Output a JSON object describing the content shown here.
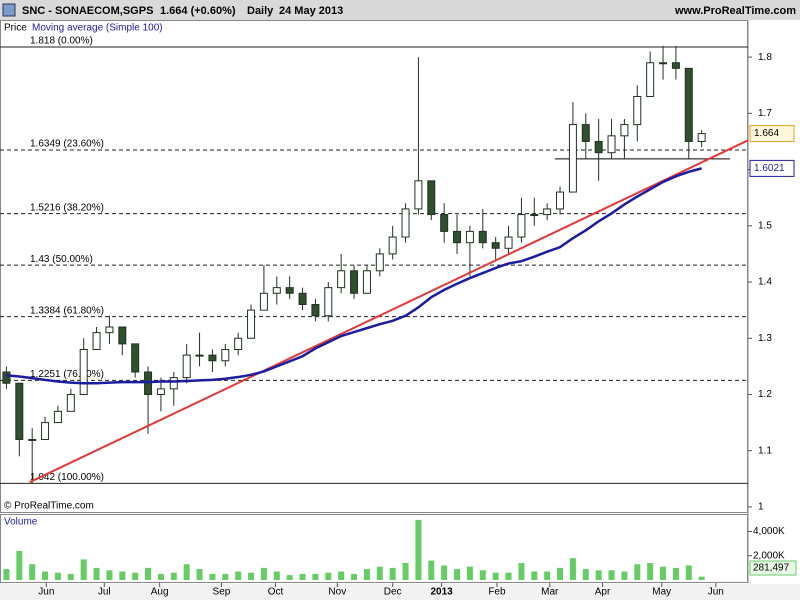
{
  "chart_data": {
    "type": "candlestick",
    "title": "SNC - SONAECOM,SGPS",
    "quote": "1.664 (+0.60%)",
    "period": "Daily",
    "date": "24 May 2013",
    "source": "www.ProRealTime.com",
    "copyright": "© ProRealTime.com",
    "xlim": [
      0,
      58.1
    ],
    "xticks": [
      {
        "value": 3.6,
        "label": "Jun"
      },
      {
        "value": 8.1,
        "label": "Jul"
      },
      {
        "value": 12.4,
        "label": "Aug"
      },
      {
        "value": 17.2,
        "label": "Sep"
      },
      {
        "value": 21.4,
        "label": "Oct"
      },
      {
        "value": 26.2,
        "label": "Nov"
      },
      {
        "value": 30.5,
        "label": "Dec"
      },
      {
        "value": 34.3,
        "label": "2013"
      },
      {
        "value": 38.6,
        "label": "Feb"
      },
      {
        "value": 42.7,
        "label": "Mar"
      },
      {
        "value": 46.8,
        "label": "Apr"
      },
      {
        "value": 51.4,
        "label": "May"
      },
      {
        "value": 55.6,
        "label": "Jun"
      }
    ],
    "ylim": [
      0.991,
      1.866
    ],
    "yticks": [
      1,
      1.1,
      1.2,
      1.3,
      1.4,
      1.5,
      1.6,
      1.7,
      1.8
    ],
    "x": [
      0.5,
      1.5,
      2.5,
      3.5,
      4.5,
      5.5,
      6.5,
      7.5,
      8.5,
      9.5,
      10.5,
      11.5,
      12.5,
      13.5,
      14.5,
      15.5,
      16.5,
      17.5,
      18.5,
      19.5,
      20.5,
      21.5,
      22.5,
      23.5,
      24.5,
      25.5,
      26.5,
      27.5,
      28.5,
      29.5,
      30.5,
      31.5,
      32.5,
      33.5,
      34.5,
      35.5,
      36.5,
      37.5,
      38.5,
      39.5,
      40.5,
      41.5,
      42.5,
      43.5,
      44.5,
      45.5,
      46.5,
      47.5,
      48.5,
      49.5,
      50.5,
      51.5,
      52.5,
      53.5,
      54.5
    ],
    "series": [
      {
        "name": "Price",
        "up_color": "#ffffff",
        "down_color": "#2f4f2f",
        "color": "#1f331f",
        "open": [
          1.24,
          1.22,
          1.12,
          1.12,
          1.15,
          1.17,
          1.2,
          1.28,
          1.31,
          1.32,
          1.29,
          1.24,
          1.2,
          1.21,
          1.23,
          1.27,
          1.27,
          1.26,
          1.28,
          1.3,
          1.35,
          1.38,
          1.39,
          1.38,
          1.36,
          1.34,
          1.39,
          1.42,
          1.38,
          1.42,
          1.45,
          1.48,
          1.53,
          1.58,
          1.52,
          1.49,
          1.47,
          1.49,
          1.47,
          1.46,
          1.48,
          1.52,
          1.52,
          1.53,
          1.56,
          1.68,
          1.65,
          1.63,
          1.66,
          1.68,
          1.73,
          1.79,
          1.79,
          1.78,
          1.65
        ],
        "high": [
          1.25,
          1.22,
          1.14,
          1.16,
          1.18,
          1.21,
          1.3,
          1.32,
          1.34,
          1.32,
          1.29,
          1.25,
          1.23,
          1.24,
          1.29,
          1.31,
          1.28,
          1.29,
          1.31,
          1.36,
          1.43,
          1.41,
          1.41,
          1.39,
          1.37,
          1.4,
          1.45,
          1.43,
          1.43,
          1.46,
          1.5,
          1.54,
          1.8,
          1.58,
          1.54,
          1.52,
          1.5,
          1.53,
          1.48,
          1.5,
          1.55,
          1.55,
          1.54,
          1.57,
          1.72,
          1.7,
          1.69,
          1.69,
          1.69,
          1.75,
          1.81,
          1.82,
          1.82,
          1.78,
          1.67
        ],
        "low": [
          1.21,
          1.09,
          1.042,
          1.12,
          1.15,
          1.17,
          1.21,
          1.28,
          1.29,
          1.27,
          1.23,
          1.13,
          1.17,
          1.18,
          1.22,
          1.25,
          1.24,
          1.25,
          1.27,
          1.3,
          1.35,
          1.36,
          1.37,
          1.35,
          1.33,
          1.33,
          1.38,
          1.37,
          1.38,
          1.41,
          1.44,
          1.47,
          1.52,
          1.51,
          1.47,
          1.45,
          1.41,
          1.46,
          1.44,
          1.45,
          1.47,
          1.5,
          1.51,
          1.52,
          1.56,
          1.62,
          1.58,
          1.62,
          1.62,
          1.65,
          1.73,
          1.76,
          1.76,
          1.62,
          1.64
        ],
        "values": [
          1.22,
          1.12,
          1.12,
          1.15,
          1.17,
          1.2,
          1.28,
          1.31,
          1.32,
          1.29,
          1.24,
          1.2,
          1.21,
          1.23,
          1.27,
          1.27,
          1.26,
          1.28,
          1.3,
          1.35,
          1.38,
          1.39,
          1.38,
          1.36,
          1.34,
          1.39,
          1.42,
          1.38,
          1.42,
          1.45,
          1.48,
          1.53,
          1.58,
          1.52,
          1.49,
          1.47,
          1.49,
          1.47,
          1.46,
          1.48,
          1.52,
          1.52,
          1.53,
          1.56,
          1.68,
          1.65,
          1.63,
          1.66,
          1.68,
          1.73,
          1.79,
          1.79,
          1.78,
          1.65,
          1.664
        ]
      },
      {
        "name": "Moving average (Simple 100)",
        "color": "#1c1ca0",
        "values": [
          1.234,
          1.232,
          1.229,
          1.226,
          1.223,
          1.221,
          1.22,
          1.22,
          1.221,
          1.222,
          1.222,
          1.222,
          1.223,
          1.223,
          1.224,
          1.225,
          1.226,
          1.228,
          1.231,
          1.235,
          1.241,
          1.25,
          1.259,
          1.268,
          1.282,
          1.293,
          1.304,
          1.311,
          1.318,
          1.325,
          1.331,
          1.34,
          1.355,
          1.373,
          1.386,
          1.397,
          1.407,
          1.416,
          1.425,
          1.433,
          1.437,
          1.445,
          1.454,
          1.462,
          1.478,
          1.492,
          1.508,
          1.522,
          1.538,
          1.552,
          1.565,
          1.578,
          1.588,
          1.596,
          1.6021
        ]
      }
    ],
    "levels": [
      {
        "value": 1.818,
        "label": "1.818 (0.00%)"
      },
      {
        "value": 1.6349,
        "label": "1.6349 (23.60%)"
      },
      {
        "value": 1.5216,
        "label": "1.5216 (38.20%)"
      },
      {
        "value": 1.43,
        "label": "1.43 (50.00%)"
      },
      {
        "value": 1.3384,
        "label": "1.3384 (61.80%)"
      },
      {
        "value": 1.2251,
        "label": "1.2251 (76.40%)"
      },
      {
        "value": 1.042,
        "label": "1.042 (100.00%)"
      }
    ],
    "trendline": {
      "x": [
        2.3,
        58.1
      ],
      "values": [
        1.044,
        1.652
      ],
      "color": "#e03a3a"
    },
    "support": {
      "x": [
        43.1,
        56.7
      ],
      "values": [
        1.619,
        1.619
      ],
      "color": "#000000"
    },
    "volume": {
      "name": "Volume",
      "color": "#66cc66",
      "values": [
        900,
        2400,
        1300,
        700,
        600,
        500,
        1700,
        1000,
        800,
        700,
        600,
        1000,
        500,
        600,
        1300,
        900,
        500,
        500,
        700,
        600,
        1000,
        700,
        400,
        500,
        500,
        600,
        700,
        500,
        900,
        1100,
        1000,
        1400,
        4960,
        1600,
        1200,
        900,
        1100,
        800,
        600,
        600,
        1400,
        700,
        700,
        1000,
        1800,
        900,
        800,
        800,
        700,
        1300,
        1400,
        1100,
        1000,
        1200,
        281.497
      ],
      "value_labels": [
        null,
        null,
        null,
        null,
        null,
        null,
        null,
        null,
        null,
        null,
        null,
        null,
        null,
        null,
        null,
        null,
        null,
        null,
        null,
        null,
        null,
        null,
        null,
        null,
        null,
        null,
        null,
        null,
        null,
        null,
        null,
        null,
        null,
        null,
        null,
        null,
        null,
        null,
        null,
        null,
        null,
        null,
        null,
        null,
        null,
        null,
        null,
        null,
        null,
        null,
        null,
        null,
        null,
        null,
        "281,497"
      ],
      "ylim": [
        0,
        5280
      ],
      "yticks": [
        {
          "value": 2000,
          "label": "2,000K"
        },
        {
          "value": 4000,
          "label": "4,000K"
        }
      ]
    }
  }
}
